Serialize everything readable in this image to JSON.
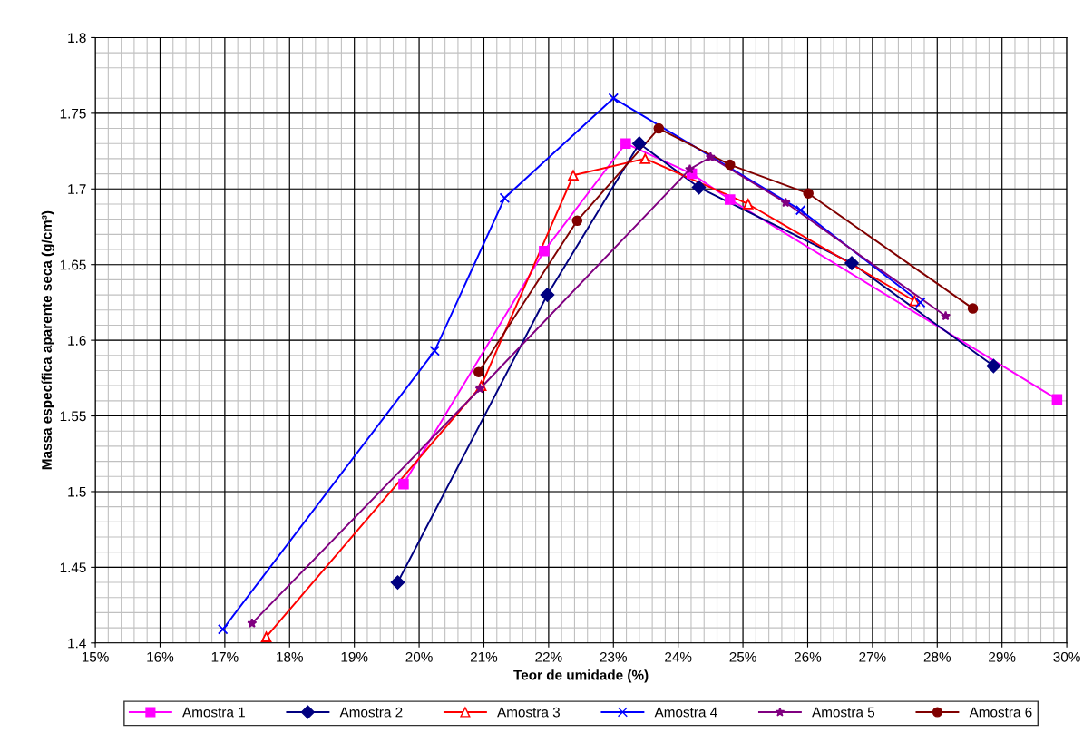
{
  "chart_data": {
    "type": "line",
    "xlabel": "Teor de umidade (%)",
    "ylabel": "Massa específica aparente seca (g/cm³)",
    "xlim": [
      15,
      30
    ],
    "ylim": [
      1.4,
      1.8
    ],
    "xticks": [
      {
        "value": 15,
        "label": "15%"
      },
      {
        "value": 16,
        "label": "16%"
      },
      {
        "value": 17,
        "label": "17%"
      },
      {
        "value": 18,
        "label": "18%"
      },
      {
        "value": 19,
        "label": "19%"
      },
      {
        "value": 20,
        "label": "20%"
      },
      {
        "value": 21,
        "label": "21%"
      },
      {
        "value": 22,
        "label": "22%"
      },
      {
        "value": 23,
        "label": "23%"
      },
      {
        "value": 24,
        "label": "24%"
      },
      {
        "value": 25,
        "label": "25%"
      },
      {
        "value": 26,
        "label": "26%"
      },
      {
        "value": 27,
        "label": "27%"
      },
      {
        "value": 28,
        "label": "28%"
      },
      {
        "value": 29,
        "label": "29%"
      },
      {
        "value": 30,
        "label": "30%"
      }
    ],
    "yticks": [
      1.4,
      1.45,
      1.5,
      1.55,
      1.6,
      1.65,
      1.7,
      1.75,
      1.8
    ],
    "grid": true,
    "legend": "bottom",
    "line_style": "solid",
    "series": [
      {
        "name": "Amostra 1",
        "color": "#ff00ff",
        "marker": "square",
        "x": [
          19.76,
          21.93,
          23.19,
          24.21,
          24.8,
          29.85
        ],
        "values": [
          1.505,
          1.659,
          1.73,
          1.71,
          1.693,
          1.561
        ]
      },
      {
        "name": "Amostra 2",
        "color": "#000080",
        "marker": "diamond",
        "x": [
          19.67,
          21.98,
          23.4,
          24.32,
          26.68,
          28.87
        ],
        "values": [
          1.44,
          1.63,
          1.73,
          1.701,
          1.651,
          1.583
        ]
      },
      {
        "name": "Amostra 3",
        "color": "#ff0000",
        "marker": "triangle",
        "x": [
          17.64,
          20.96,
          22.38,
          23.49,
          25.08,
          27.65
        ],
        "values": [
          1.404,
          1.57,
          1.709,
          1.72,
          1.69,
          1.626
        ]
      },
      {
        "name": "Amostra 4",
        "color": "#0000ff",
        "marker": "cross",
        "x": [
          16.97,
          20.24,
          21.32,
          23.0,
          25.89,
          27.74
        ],
        "values": [
          1.409,
          1.593,
          1.694,
          1.76,
          1.686,
          1.625
        ]
      },
      {
        "name": "Amostra 5",
        "color": "#800080",
        "marker": "star",
        "x": [
          17.42,
          20.94,
          24.18,
          24.5,
          25.66,
          28.13
        ],
        "values": [
          1.413,
          1.568,
          1.713,
          1.721,
          1.691,
          1.616
        ]
      },
      {
        "name": "Amostra 6",
        "color": "#800000",
        "marker": "circle",
        "x": [
          20.92,
          22.44,
          23.7,
          24.8,
          26.01,
          28.55
        ],
        "values": [
          1.579,
          1.679,
          1.74,
          1.716,
          1.697,
          1.621
        ]
      }
    ]
  }
}
